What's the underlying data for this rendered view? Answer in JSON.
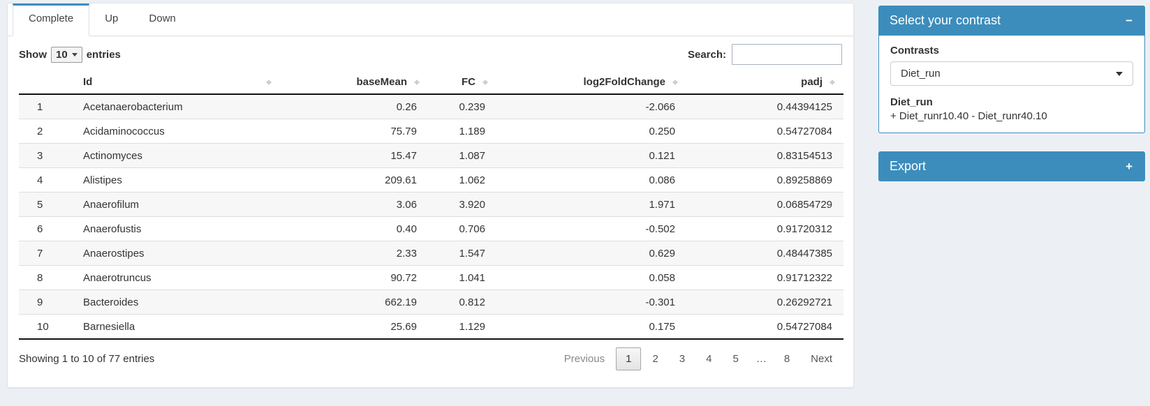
{
  "colors": {
    "primary": "#3c8dbc",
    "header_border": "#111111",
    "stripe": "#f7f7f7",
    "page_bg": "#ecf0f5"
  },
  "tabs": [
    {
      "label": "Complete",
      "active": true
    },
    {
      "label": "Up",
      "active": false
    },
    {
      "label": "Down",
      "active": false
    }
  ],
  "table_controls": {
    "show_label": "Show",
    "page_size": "10",
    "entries_label": "entries",
    "search_label": "Search:",
    "search_value": ""
  },
  "table": {
    "columns": [
      {
        "key": "rownum",
        "label": "",
        "align": "left",
        "sortable": false
      },
      {
        "key": "id",
        "label": "Id",
        "align": "left",
        "sortable": true
      },
      {
        "key": "baseMean",
        "label": "baseMean",
        "align": "right",
        "sortable": true
      },
      {
        "key": "fc",
        "label": "FC",
        "align": "right",
        "sortable": true
      },
      {
        "key": "log2fc",
        "label": "log2FoldChange",
        "align": "right",
        "sortable": true
      },
      {
        "key": "padj",
        "label": "padj",
        "align": "right",
        "sortable": true
      }
    ],
    "rows": [
      {
        "num": "1",
        "id": "Acetanaerobacterium",
        "baseMean": "0.26",
        "fc": "0.239",
        "log2fc": "-2.066",
        "padj": "0.44394125"
      },
      {
        "num": "2",
        "id": "Acidaminococcus",
        "baseMean": "75.79",
        "fc": "1.189",
        "log2fc": "0.250",
        "padj": "0.54727084"
      },
      {
        "num": "3",
        "id": "Actinomyces",
        "baseMean": "15.47",
        "fc": "1.087",
        "log2fc": "0.121",
        "padj": "0.83154513"
      },
      {
        "num": "4",
        "id": "Alistipes",
        "baseMean": "209.61",
        "fc": "1.062",
        "log2fc": "0.086",
        "padj": "0.89258869"
      },
      {
        "num": "5",
        "id": "Anaerofilum",
        "baseMean": "3.06",
        "fc": "3.920",
        "log2fc": "1.971",
        "padj": "0.06854729"
      },
      {
        "num": "6",
        "id": "Anaerofustis",
        "baseMean": "0.40",
        "fc": "0.706",
        "log2fc": "-0.502",
        "padj": "0.91720312"
      },
      {
        "num": "7",
        "id": "Anaerostipes",
        "baseMean": "2.33",
        "fc": "1.547",
        "log2fc": "0.629",
        "padj": "0.48447385"
      },
      {
        "num": "8",
        "id": "Anaerotruncus",
        "baseMean": "90.72",
        "fc": "1.041",
        "log2fc": "0.058",
        "padj": "0.91712322"
      },
      {
        "num": "9",
        "id": "Bacteroides",
        "baseMean": "662.19",
        "fc": "0.812",
        "log2fc": "-0.301",
        "padj": "0.26292721"
      },
      {
        "num": "10",
        "id": "Barnesiella",
        "baseMean": "25.69",
        "fc": "1.129",
        "log2fc": "0.175",
        "padj": "0.54727084"
      }
    ]
  },
  "table_footer": {
    "info": "Showing 1 to 10 of 77 entries",
    "pagination": [
      "Previous",
      "1",
      "2",
      "3",
      "4",
      "5",
      "…",
      "8",
      "Next"
    ],
    "current_page": "1"
  },
  "contrast_panel": {
    "title": "Select your contrast",
    "collapse_glyph": "−",
    "contrasts_label": "Contrasts",
    "selected_contrast": "Diet_run",
    "contrast_name": "Diet_run",
    "contrast_formula": "+ Diet_runr10.40 - Diet_runr40.10"
  },
  "export_panel": {
    "title": "Export",
    "expand_glyph": "+"
  }
}
